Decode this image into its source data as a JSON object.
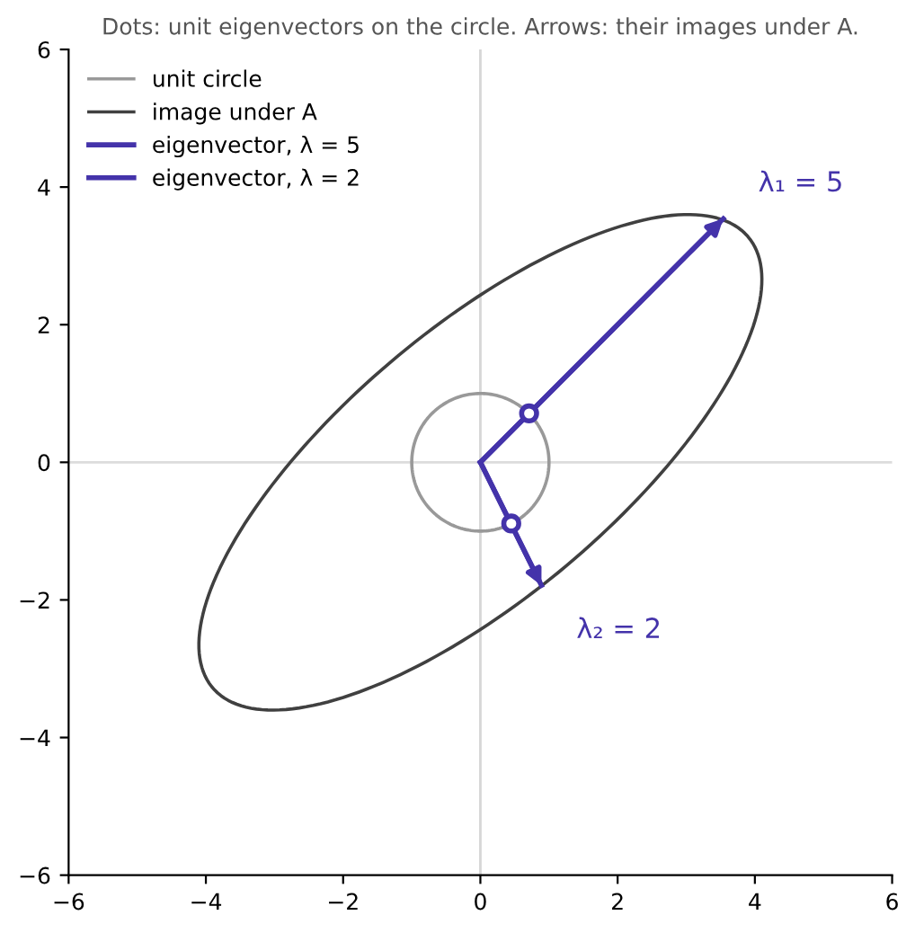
{
  "chart_data": {
    "type": "line",
    "title": "Dots: unit eigenvectors on the circle. Arrows: their images under A.",
    "xlim": [
      -6,
      6
    ],
    "ylim": [
      -6,
      6
    ],
    "xticks": [
      {
        "value": -6,
        "label": "−6"
      },
      {
        "value": -4,
        "label": "−4"
      },
      {
        "value": -2,
        "label": "−2"
      },
      0,
      2,
      4,
      6
    ],
    "yticks": [
      {
        "value": -6,
        "label": "−6"
      },
      {
        "value": -4,
        "label": "−4"
      },
      {
        "value": -2,
        "label": "−2"
      },
      0,
      2,
      4,
      6
    ],
    "grid": false,
    "legend": "top left",
    "ref_lines": [
      {
        "axis": "x",
        "value": 0,
        "color": "#d6d6d6"
      },
      {
        "axis": "y",
        "value": 0,
        "color": "#dcdcdc"
      }
    ],
    "series": [
      {
        "name": "unit circle",
        "type": "other",
        "color": "#999999"
      },
      {
        "name": "image under A",
        "type": "other",
        "color": "#404040"
      },
      {
        "name": "eigenvector, λ = 5",
        "color": "#4433aa",
        "x": [
          0,
          3.54
        ],
        "values": [
          0,
          3.54
        ]
      },
      {
        "name": "eigenvector, λ = 2",
        "color": "#4433aa",
        "x": [
          0,
          0.89
        ],
        "values": [
          0,
          -1.79
        ]
      },
      {
        "type": "scatter",
        "marker": "circle",
        "color": "#4433aa",
        "x": [
          0.71,
          0.45
        ],
        "values": [
          0.71,
          -0.89
        ]
      }
    ],
    "annotations": [
      "λ₁ = 5",
      "λ₂ = 2"
    ]
  }
}
